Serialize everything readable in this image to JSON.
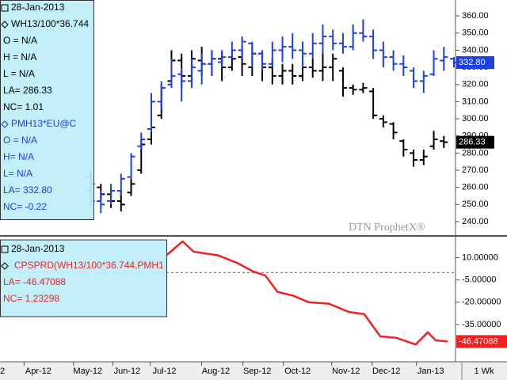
{
  "chart_data": [
    {
      "type": "ohlc",
      "legend_date": "28-Jan-2013",
      "watermark": "DTN ProphetX®",
      "xlim": [
        0,
        45
      ],
      "ylim": [
        232.6,
        369.3
      ],
      "yticks": [
        {
          "value": 360,
          "label": "360.00"
        },
        {
          "value": 350,
          "label": "350.00"
        },
        {
          "value": 340,
          "label": "340.00"
        },
        {
          "value": 330,
          "label": "330.00"
        },
        {
          "value": 320,
          "label": "320.00"
        },
        {
          "value": 310,
          "label": "310.00"
        },
        {
          "value": 300,
          "label": "300.00"
        },
        {
          "value": 290,
          "label": "290.00"
        },
        {
          "value": 280,
          "label": "280.00"
        },
        {
          "value": 270,
          "label": "270.00"
        },
        {
          "value": 260,
          "label": "260.00"
        },
        {
          "value": 250,
          "label": "250.00"
        },
        {
          "value": 240,
          "label": "240.00"
        }
      ],
      "series": [
        {
          "name": "WH13/100*36.744",
          "color": "#000000",
          "info": [
            "O = N/A",
            "H = N/A",
            "L = N/A",
            "LA= 286.33",
            "NC= 1.01"
          ],
          "last_label": {
            "value": 286.33,
            "label": "286.33"
          },
          "x": [
            9,
            10,
            11,
            12,
            13,
            14,
            15,
            16,
            17,
            18,
            19,
            20,
            21,
            22,
            23,
            24,
            25,
            26,
            27,
            28,
            29,
            30,
            31,
            32,
            33,
            34,
            35,
            36,
            37,
            38,
            39,
            40,
            41,
            42,
            43,
            44
          ],
          "low": [
            250,
            252,
            248,
            246,
            255,
            268,
            285,
            300,
            320,
            318,
            322,
            325,
            325,
            322,
            328,
            325,
            325,
            322,
            320,
            320,
            320,
            322,
            324,
            322,
            322,
            313,
            314,
            315,
            300,
            295,
            288,
            278,
            272,
            273,
            282,
            283
          ],
          "high": [
            270,
            262,
            260,
            258,
            265,
            288,
            300,
            320,
            340,
            338,
            340,
            342,
            340,
            340,
            340,
            342,
            343,
            340,
            335,
            332,
            332,
            335,
            335,
            338,
            338,
            330,
            320,
            321,
            318,
            302,
            298,
            288,
            282,
            282,
            293,
            290
          ],
          "open": [
            266,
            260,
            256,
            252,
            257,
            270,
            288,
            302,
            322,
            334,
            325,
            334,
            332,
            335,
            330,
            336,
            330,
            338,
            330,
            325,
            328,
            325,
            330,
            328,
            330,
            328,
            318,
            317,
            316,
            300,
            297,
            287,
            280,
            276,
            284,
            287
          ],
          "close": [
            262,
            256,
            252,
            250,
            262,
            285,
            295,
            318,
            334,
            325,
            335,
            332,
            335,
            330,
            335,
            332,
            338,
            330,
            325,
            328,
            325,
            330,
            328,
            330,
            335,
            318,
            317,
            318,
            302,
            298,
            292,
            282,
            276,
            278,
            288,
            286.33
          ]
        },
        {
          "name": "PMH13*EU@C",
          "color": "#1f3fe0",
          "info": [
            "O = N/A",
            "H= N/A",
            "L= N/A",
            "LA= 332.80",
            "NC= -0.22"
          ],
          "last_label": {
            "value": 332.8,
            "label": "332.80"
          },
          "x": [
            9,
            10,
            11,
            12,
            13,
            14,
            15,
            16,
            17,
            18,
            19,
            20,
            21,
            22,
            23,
            24,
            25,
            26,
            27,
            28,
            29,
            30,
            31,
            32,
            33,
            34,
            35,
            36,
            37,
            38,
            39,
            40,
            41,
            42,
            43,
            44,
            45
          ],
          "low": [
            248,
            245,
            250,
            255,
            265,
            282,
            292,
            305,
            318,
            310,
            318,
            320,
            325,
            330,
            335,
            335,
            330,
            328,
            330,
            333,
            335,
            330,
            335,
            338,
            340,
            338,
            340,
            345,
            335,
            330,
            328,
            325,
            318,
            315,
            325,
            328,
            330
          ],
          "high": [
            262,
            258,
            262,
            268,
            280,
            292,
            315,
            322,
            335,
            330,
            335,
            338,
            340,
            340,
            345,
            348,
            345,
            340,
            345,
            348,
            350,
            345,
            350,
            355,
            352,
            350,
            355,
            358,
            352,
            345,
            340,
            337,
            330,
            328,
            340,
            342,
            336
          ],
          "open": [
            258,
            252,
            252,
            258,
            266,
            284,
            294,
            310,
            320,
            326,
            322,
            328,
            332,
            333,
            336,
            340,
            344,
            338,
            332,
            340,
            342,
            340,
            338,
            344,
            348,
            344,
            342,
            350,
            348,
            340,
            336,
            332,
            328,
            322,
            326,
            334,
            335
          ],
          "close": [
            252,
            250,
            258,
            265,
            278,
            288,
            310,
            318,
            325,
            322,
            330,
            332,
            335,
            336,
            340,
            345,
            338,
            332,
            340,
            342,
            340,
            338,
            344,
            348,
            344,
            342,
            350,
            348,
            340,
            336,
            332,
            330,
            322,
            325,
            335,
            336,
            332.8
          ]
        }
      ]
    },
    {
      "type": "line",
      "legend_date": "28-Jan-2013",
      "interval": "1 Wk",
      "xlim": [
        0,
        45
      ],
      "ylim": [
        -59.6,
        23.6
      ],
      "hline": 0,
      "xticks": [
        {
          "value": 0.24,
          "label": "2"
        },
        {
          "value": 3.8,
          "label": "Apr-12"
        },
        {
          "value": 8.7,
          "label": "May-12"
        },
        {
          "value": 12.6,
          "label": "Jun-12"
        },
        {
          "value": 16.3,
          "label": "Jul-12"
        },
        {
          "value": 21.4,
          "label": "Aug-12"
        },
        {
          "value": 25.5,
          "label": "Sep-12"
        },
        {
          "value": 29.5,
          "label": "Oct-12"
        },
        {
          "value": 34.3,
          "label": "Nov-12"
        },
        {
          "value": 38.3,
          "label": "Dec-12"
        },
        {
          "value": 42.7,
          "label": "Jan-13"
        }
      ],
      "yticks": [
        {
          "value": 10,
          "label": "10.00000"
        },
        {
          "value": -5,
          "label": "-5.00000"
        },
        {
          "value": -20,
          "label": "-20.00000"
        },
        {
          "value": -35,
          "label": "-35.00000"
        }
      ],
      "series": [
        {
          "name": "CPSPRD(WH13/100*36.744,PMH1",
          "color": "#ee2222",
          "info": [
            "LA= -46.47088",
            "NC= 1.23298"
          ],
          "last_label": {
            "value": -46.47088,
            "label": "-46.47088"
          },
          "x": [
            16.5,
            18.1,
            19.2,
            21.6,
            23.6,
            25.1,
            26.3,
            27.5,
            29.1,
            30.6,
            32.6,
            34.6,
            36.1,
            37.7,
            39.3,
            41.2,
            42.4,
            43.2,
            44.4
          ],
          "values": [
            11.6,
            21,
            14,
            11.6,
            6.2,
            0.7,
            -2,
            -13,
            -15.7,
            -20,
            -21,
            -26.6,
            -28,
            -43,
            -44,
            -48.5,
            -40.3,
            -45.7,
            -46.47088
          ]
        }
      ]
    }
  ]
}
